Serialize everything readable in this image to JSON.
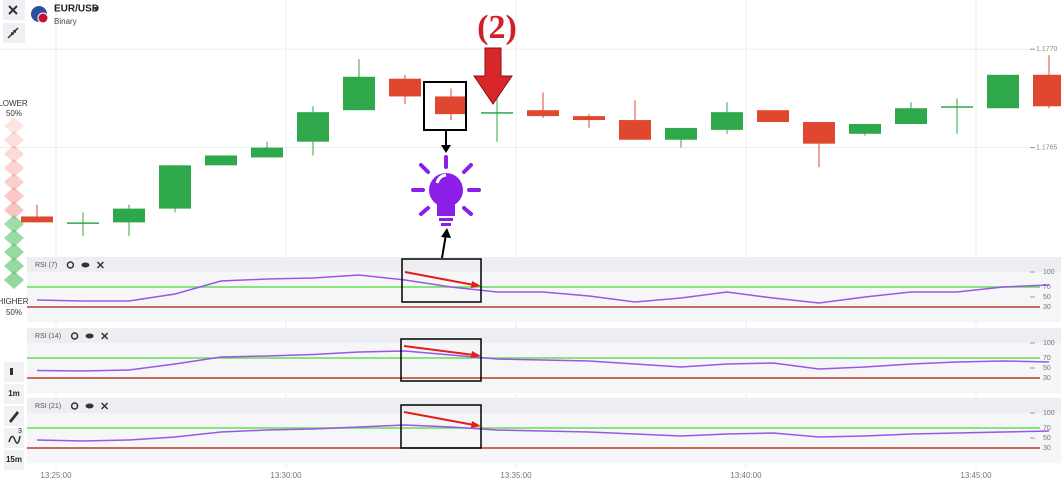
{
  "header": {
    "symbol": "EUR/USD",
    "mode": "Binary"
  },
  "sidebar": {
    "lower_label": "LOWER",
    "lower_pct": "50%",
    "higher_label": "HIGHER",
    "higher_pct": "50%"
  },
  "toolbar": {
    "timeframes": [
      "1m",
      "15m"
    ],
    "badge": "3"
  },
  "annotation": "(2)",
  "chart_data": [
    {
      "type": "candlestick",
      "up_color": "#2ea84a",
      "down_color": "#e0472f",
      "open": [
        1.17615,
        1.17612,
        1.17612,
        1.17619,
        1.17641,
        1.17645,
        1.17653,
        1.17669,
        1.17685,
        1.17676,
        1.17668,
        1.17669,
        1.17666,
        1.17664,
        1.17654,
        1.17659,
        1.17669,
        1.17663,
        1.17657,
        1.17662,
        1.17671,
        1.1767,
        1.17687
      ],
      "high": [
        1.17621,
        1.17617,
        1.17621,
        1.17641,
        1.17646,
        1.17653,
        1.17671,
        1.17695,
        1.17687,
        1.1768,
        1.17675,
        1.17678,
        1.17667,
        1.17674,
        1.1766,
        1.17673,
        1.17669,
        1.17663,
        1.17662,
        1.17673,
        1.17675,
        1.17687,
        1.17697
      ],
      "low": [
        1.17612,
        1.17605,
        1.17605,
        1.17617,
        1.17641,
        1.17645,
        1.17646,
        1.17669,
        1.17672,
        1.17664,
        1.17653,
        1.17665,
        1.1766,
        1.17654,
        1.1765,
        1.17657,
        1.17663,
        1.1764,
        1.17656,
        1.17662,
        1.17657,
        1.1767,
        1.1767
      ],
      "close": [
        1.17612,
        1.17612,
        1.17619,
        1.17641,
        1.17646,
        1.1765,
        1.17668,
        1.17686,
        1.17676,
        1.17667,
        1.17668,
        1.17666,
        1.17664,
        1.17654,
        1.1766,
        1.17668,
        1.17663,
        1.17652,
        1.17662,
        1.1767,
        1.17671,
        1.17687,
        1.17671
      ],
      "ylim": [
        1.176,
        1.17725
      ],
      "yticks": [
        {
          "value": 1.177,
          "label": "1.1770"
        },
        {
          "value": 1.1765,
          "label": "1.1765"
        }
      ],
      "time_labels": [
        "13:25:00",
        "13:30:00",
        "13:35:00",
        "13:40:00",
        "13:45:00"
      ]
    },
    {
      "type": "line",
      "title": "RSI (7)",
      "color": "#9b55e8",
      "ylim": [
        0,
        130
      ],
      "yticks": [
        100,
        70,
        50,
        30
      ],
      "levels": [
        {
          "value": 70,
          "color": "#66dd55"
        },
        {
          "value": 30,
          "color": "#c0392b"
        }
      ],
      "values": [
        44,
        42,
        42,
        56,
        82,
        86,
        88,
        94,
        84,
        70,
        60,
        60,
        52,
        40,
        48,
        60,
        48,
        38,
        50,
        60,
        60,
        70,
        74
      ]
    },
    {
      "type": "line",
      "title": "RSI (14)",
      "color": "#9b55e8",
      "ylim": [
        0,
        130
      ],
      "yticks": [
        100,
        70,
        50,
        30
      ],
      "levels": [
        {
          "value": 70,
          "color": "#66dd55"
        },
        {
          "value": 30,
          "color": "#c0392b"
        }
      ],
      "values": [
        45,
        44,
        46,
        58,
        72,
        74,
        77,
        82,
        84,
        76,
        68,
        66,
        64,
        58,
        52,
        58,
        60,
        48,
        52,
        58,
        62,
        64,
        62
      ]
    },
    {
      "type": "line",
      "title": "RSI (21)",
      "color": "#9b55e8",
      "ylim": [
        0,
        130
      ],
      "yticks": [
        100,
        70,
        50,
        30
      ],
      "levels": [
        {
          "value": 70,
          "color": "#66dd55"
        },
        {
          "value": 30,
          "color": "#c0392b"
        }
      ],
      "values": [
        46,
        44,
        46,
        52,
        62,
        66,
        68,
        72,
        76,
        72,
        66,
        64,
        62,
        58,
        54,
        58,
        60,
        52,
        54,
        58,
        60,
        62,
        64
      ]
    }
  ]
}
